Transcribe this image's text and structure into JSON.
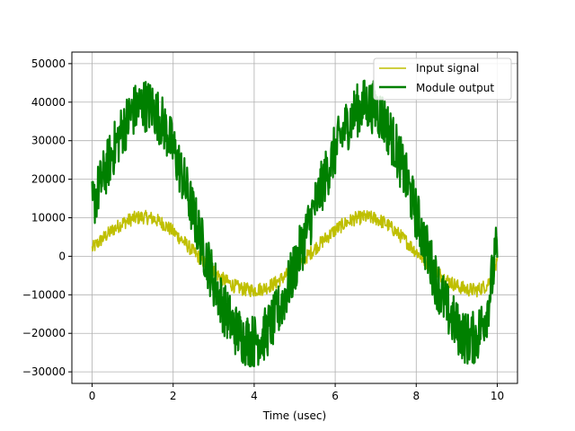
{
  "chart_data": {
    "type": "line",
    "title": "",
    "xlabel": "Time (usec)",
    "ylabel": "",
    "xlim": [
      -0.5,
      10.5
    ],
    "ylim": [
      -33000,
      53000
    ],
    "xticks": [
      0,
      2,
      4,
      6,
      8,
      10
    ],
    "yticks": [
      -30000,
      -20000,
      -10000,
      0,
      10000,
      20000,
      30000,
      40000,
      50000
    ],
    "xtick_labels": [
      "0",
      "2",
      "4",
      "6",
      "8",
      "10"
    ],
    "ytick_labels": [
      "−30000",
      "−20000",
      "−10000",
      "0",
      "10000",
      "20000",
      "30000",
      "40000",
      "50000"
    ],
    "grid": true,
    "legend_position": "upper-right",
    "series": [
      {
        "name": "Input signal",
        "color": "#bfbf00",
        "line_width": "thin",
        "x": [
          0,
          0.25,
          0.5,
          0.75,
          1.0,
          1.25,
          1.5,
          1.75,
          2.0,
          2.25,
          2.5,
          2.75,
          3.0,
          3.25,
          3.5,
          3.75,
          4.0,
          4.25,
          4.5,
          4.75,
          5.0,
          5.25,
          5.5,
          5.75,
          6.0,
          6.25,
          6.5,
          6.75,
          7.0,
          7.25,
          7.5,
          7.75,
          8.0,
          8.25,
          8.5,
          8.75,
          9.0,
          9.25,
          9.5,
          9.75,
          10.0
        ],
        "y": [
          2000,
          4500,
          6800,
          8600,
          9800,
          10200,
          9800,
          8500,
          6400,
          3900,
          1200,
          -1500,
          -4000,
          -6100,
          -7700,
          -8600,
          -8800,
          -8300,
          -7100,
          -5300,
          -3100,
          -600,
          2000,
          4500,
          6800,
          8600,
          9800,
          10200,
          9800,
          8500,
          6400,
          3900,
          1200,
          -1500,
          -4000,
          -6100,
          -7700,
          -8600,
          -8800,
          -7500,
          -2000
        ],
        "noise_amplitude": 1800
      },
      {
        "name": "Module output",
        "color": "#008000",
        "line_width": "thick",
        "x": [
          0,
          0.25,
          0.5,
          0.75,
          1.0,
          1.25,
          1.5,
          1.75,
          2.0,
          2.25,
          2.5,
          2.75,
          3.0,
          3.25,
          3.5,
          3.75,
          4.0,
          4.25,
          4.5,
          4.75,
          5.0,
          5.25,
          5.5,
          5.75,
          6.0,
          6.25,
          6.5,
          6.75,
          7.0,
          7.25,
          7.5,
          7.75,
          8.0,
          8.25,
          8.5,
          8.75,
          9.0,
          9.25,
          9.5,
          9.75,
          10.0
        ],
        "y": [
          13000,
          20000,
          27000,
          33000,
          37500,
          39500,
          38500,
          34500,
          28000,
          20000,
          11000,
          2000,
          -6500,
          -13500,
          -18500,
          -21500,
          -22000,
          -20500,
          -16500,
          -10500,
          -3000,
          5000,
          13000,
          20500,
          27500,
          33500,
          37500,
          39500,
          38500,
          34500,
          28000,
          20000,
          11000,
          2000,
          -6500,
          -13500,
          -18500,
          -21500,
          -21000,
          -14000,
          3000
        ],
        "noise_amplitude": 7000
      }
    ]
  }
}
